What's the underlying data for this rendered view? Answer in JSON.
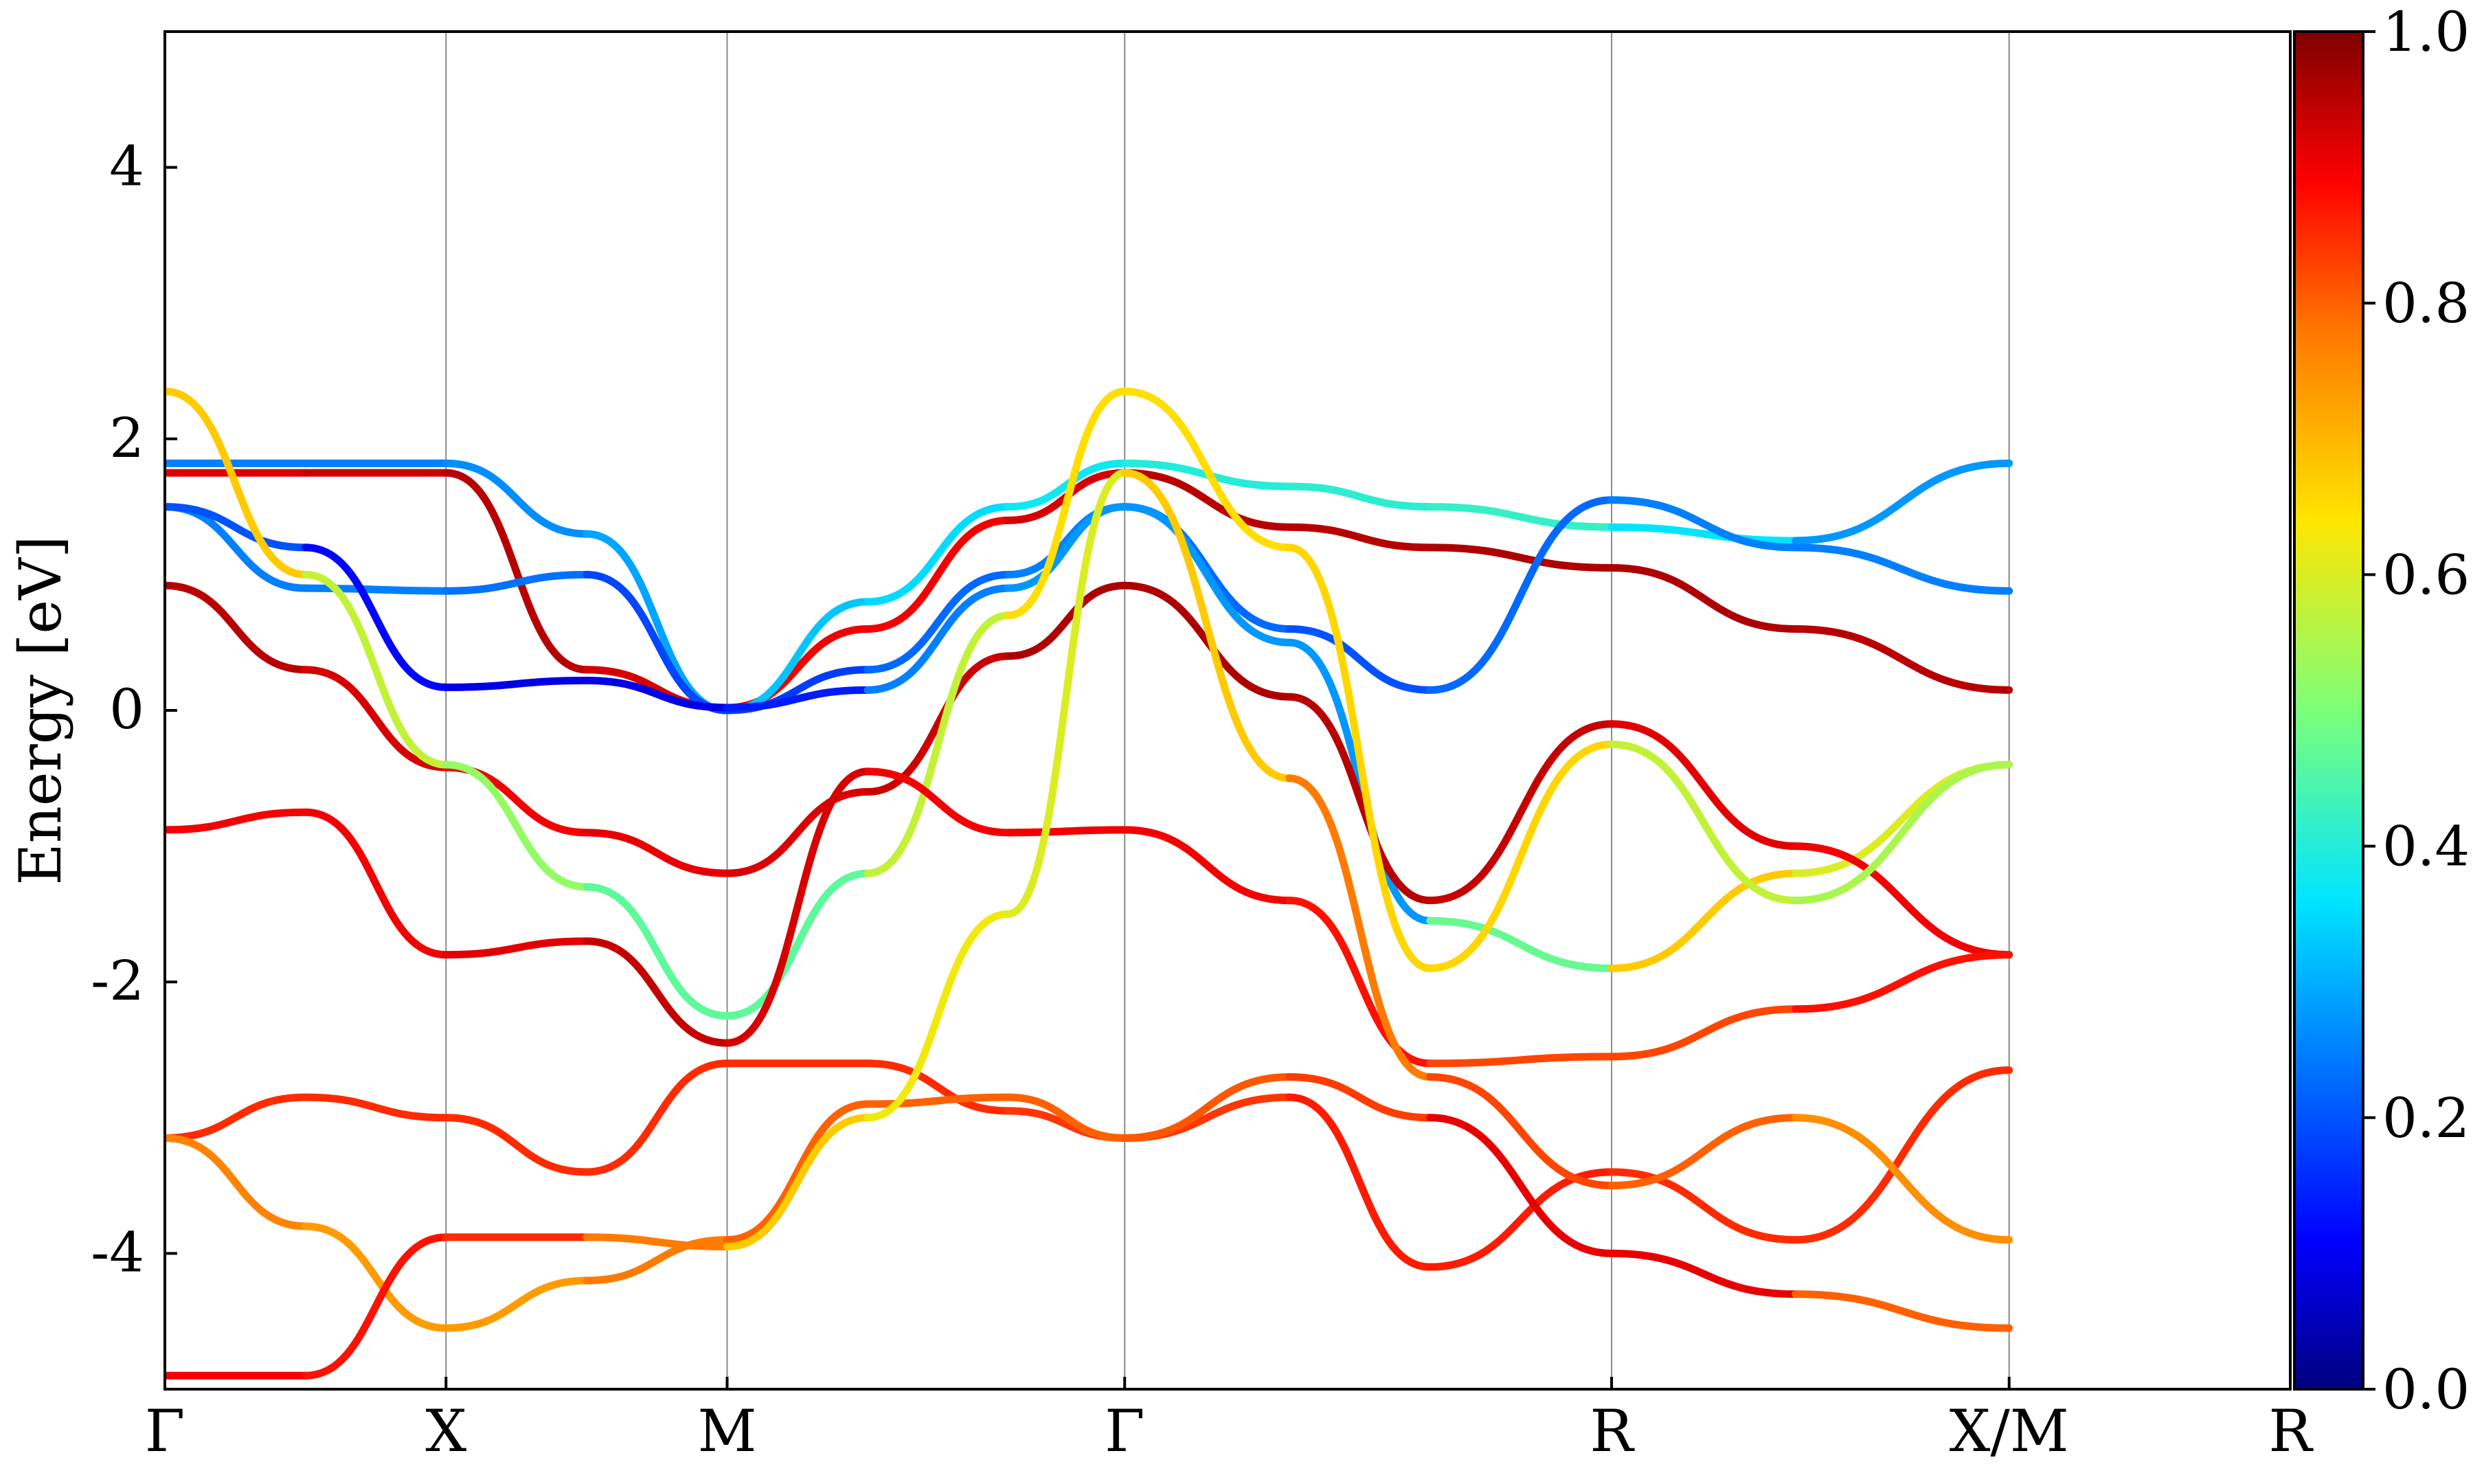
{
  "chart_data": {
    "type": "line",
    "title": "",
    "xlabel": "",
    "ylabel": "Energy [eV]",
    "ylim": [
      -5,
      5
    ],
    "grid": "vertical lines at high-symmetry points",
    "k_labels": [
      "Γ",
      "X",
      "M",
      "Γ",
      "R",
      "X/M",
      "R"
    ],
    "k_positions": [
      0.0,
      0.5,
      1.0,
      1.707,
      2.573,
      3.28,
      3.78
    ],
    "xlim": [
      0.0,
      3.78
    ],
    "yticks": [
      "-4",
      "-2",
      "0",
      "2",
      "4"
    ],
    "colorbar": {
      "label": "",
      "range": [
        0.0,
        1.0
      ],
      "ticks": [
        "0.0",
        "0.2",
        "0.4",
        "0.6",
        "0.8",
        "1.0"
      ],
      "colormap": "jet"
    },
    "series": [
      {
        "kx": [
          0,
          0.25,
          0.5,
          0.75,
          1.0,
          1.25,
          1.5,
          1.707,
          2.0,
          2.25,
          2.573,
          2.9,
          3.28
        ],
        "energy": [
          1.75,
          1.75,
          1.75,
          0.3,
          0.02,
          0.6,
          1.4,
          1.75,
          1.35,
          1.2,
          1.05,
          0.6,
          0.15
        ],
        "weight": [
          0.92,
          0.92,
          0.95,
          0.95,
          0.9,
          0.9,
          0.9,
          0.95,
          0.95,
          0.95,
          0.97,
          0.95,
          0.95
        ]
      },
      {
        "kx": [
          0,
          0.25,
          0.5,
          0.75,
          1.0,
          1.25,
          1.5,
          1.707,
          2.0,
          2.25,
          2.573,
          2.9,
          3.28
        ],
        "energy": [
          1.82,
          1.82,
          1.82,
          1.3,
          0.0,
          0.8,
          1.5,
          1.82,
          1.65,
          1.5,
          1.35,
          1.25,
          1.82
        ],
        "weight": [
          0.25,
          0.25,
          0.25,
          0.28,
          0.3,
          0.35,
          0.35,
          0.4,
          0.4,
          0.42,
          0.42,
          0.3,
          0.25
        ]
      },
      {
        "kx": [
          0,
          0.25,
          0.5,
          0.75,
          1.0,
          1.25,
          1.5,
          1.707,
          2.0,
          2.25,
          2.573,
          2.9,
          3.28
        ],
        "energy": [
          1.5,
          0.9,
          0.88,
          1.0,
          0.0,
          0.3,
          1.0,
          1.5,
          0.6,
          0.15,
          1.55,
          1.2,
          0.88
        ],
        "weight": [
          0.25,
          0.25,
          0.25,
          0.22,
          0.15,
          0.2,
          0.25,
          0.25,
          0.2,
          0.2,
          0.25,
          0.25,
          0.25
        ]
      },
      {
        "kx": [
          0,
          0.25,
          0.5,
          0.75,
          1.0,
          1.25,
          1.5,
          1.707,
          2.0,
          2.25,
          2.573,
          2.9,
          3.28
        ],
        "energy": [
          1.5,
          1.2,
          0.17,
          0.22,
          0.02,
          0.15,
          0.9,
          1.5,
          0.5,
          -1.55,
          -1.9,
          -1.2,
          -0.4
        ],
        "weight": [
          0.25,
          0.15,
          0.08,
          0.1,
          0.08,
          0.2,
          0.3,
          0.25,
          0.3,
          0.25,
          0.7,
          0.65,
          0.55
        ]
      },
      {
        "kx": [
          0,
          0.25,
          0.5,
          0.75,
          1.0,
          1.25,
          1.5,
          1.707,
          2.0,
          2.25,
          2.573,
          2.9,
          3.28
        ],
        "energy": [
          0.92,
          0.3,
          -0.42,
          -0.9,
          -1.2,
          -0.6,
          0.4,
          0.92,
          0.1,
          -1.4,
          -0.1,
          -1.0,
          -1.8
        ],
        "weight": [
          0.95,
          0.95,
          0.9,
          0.9,
          0.92,
          0.92,
          0.95,
          0.97,
          0.95,
          0.95,
          0.93,
          0.9,
          0.9
        ]
      },
      {
        "kx": [
          0,
          0.25,
          0.5,
          0.75,
          1.0,
          1.25,
          1.5,
          1.707,
          2.0,
          2.25,
          2.573,
          2.9,
          3.28
        ],
        "energy": [
          2.35,
          1.0,
          -0.4,
          -1.3,
          -2.25,
          -1.2,
          0.7,
          2.35,
          1.2,
          -1.9,
          -0.25,
          -1.4,
          -0.4
        ],
        "weight": [
          0.7,
          0.65,
          0.5,
          0.55,
          0.38,
          0.55,
          0.6,
          0.7,
          0.6,
          0.72,
          0.6,
          0.55,
          0.55
        ]
      },
      {
        "kx": [
          0,
          0.25,
          0.5,
          0.75,
          1.0,
          1.25,
          1.5,
          1.707,
          2.0,
          2.25,
          2.573,
          2.9,
          3.28
        ],
        "energy": [
          -0.88,
          -0.75,
          -1.8,
          -1.7,
          -2.45,
          -0.45,
          -0.9,
          -0.88,
          -1.4,
          -2.6,
          -2.55,
          -2.2,
          -1.8
        ],
        "weight": [
          0.9,
          0.9,
          0.9,
          0.93,
          0.95,
          0.9,
          0.9,
          0.9,
          0.9,
          0.85,
          0.8,
          0.85,
          0.9
        ]
      },
      {
        "kx": [
          0,
          0.25,
          0.5,
          0.75,
          1.0,
          1.25,
          1.5,
          1.707,
          2.0,
          2.25,
          2.573,
          2.9,
          3.28
        ],
        "energy": [
          -3.15,
          -2.85,
          -3.0,
          -3.4,
          -2.6,
          -2.6,
          -2.95,
          -3.15,
          -2.85,
          -4.1,
          -3.4,
          -3.9,
          -2.65
        ],
        "weight": [
          0.85,
          0.85,
          0.85,
          0.85,
          0.85,
          0.85,
          0.85,
          0.83,
          0.85,
          0.88,
          0.85,
          0.85,
          0.85
        ]
      },
      {
        "kx": [
          0,
          0.25,
          0.5,
          0.75,
          1.0,
          1.25,
          1.5,
          1.707,
          2.0,
          2.25,
          2.573,
          2.9,
          3.28
        ],
        "energy": [
          -3.15,
          -3.8,
          -4.55,
          -4.2,
          -3.9,
          -2.9,
          -2.85,
          -3.15,
          -2.7,
          -3.0,
          -4.0,
          -4.3,
          -4.55
        ],
        "weight": [
          0.78,
          0.75,
          0.72,
          0.75,
          0.8,
          0.8,
          0.8,
          0.8,
          0.82,
          0.85,
          0.97,
          0.85,
          0.75
        ]
      },
      {
        "kx": [
          0,
          0.25,
          0.5,
          0.75,
          1.0,
          1.25,
          1.5,
          1.707,
          2.0,
          2.25,
          2.573,
          2.9,
          3.28
        ],
        "energy": [
          -4.9,
          -4.9,
          -3.88,
          -3.88,
          -3.95,
          -3.0,
          -1.5,
          1.75,
          -0.5,
          -2.7,
          -3.5,
          -3.0,
          -3.9
        ],
        "weight": [
          0.9,
          0.9,
          0.85,
          0.85,
          0.7,
          0.65,
          0.6,
          0.6,
          0.75,
          0.8,
          0.85,
          0.75,
          0.75
        ]
      }
    ]
  }
}
